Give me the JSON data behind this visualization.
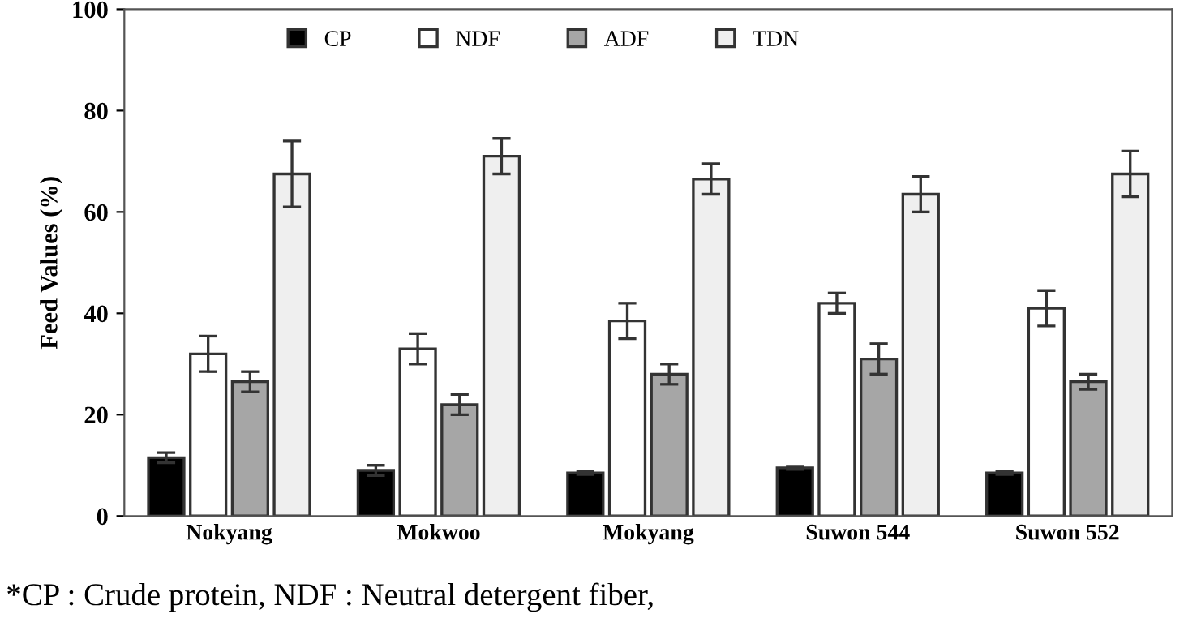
{
  "chart_data": {
    "type": "bar",
    "ylabel": "Feed Values (%)",
    "categories": [
      "Nokyang",
      "Mokwoo",
      "Mokyang",
      "Suwon 544",
      "Suwon 552"
    ],
    "series": [
      {
        "name": "CP",
        "color": "#000000",
        "values": [
          11.5,
          9,
          8.5,
          9.5,
          8.5
        ],
        "errors": [
          1,
          1,
          0.3,
          0.3,
          0.3
        ]
      },
      {
        "name": "NDF",
        "color": "#ffffff",
        "values": [
          32,
          33,
          38.5,
          42,
          41
        ],
        "errors": [
          3.5,
          3,
          3.5,
          2,
          3.5
        ]
      },
      {
        "name": "ADF",
        "color": "#a6a6a6",
        "values": [
          26.5,
          22,
          28,
          31,
          26.5
        ],
        "errors": [
          2,
          2,
          2,
          3,
          1.5
        ]
      },
      {
        "name": "TDN",
        "color": "#efefef",
        "values": [
          67.5,
          71,
          66.5,
          63.5,
          67.5
        ],
        "errors": [
          6.5,
          3.5,
          3,
          3.5,
          4.5
        ]
      }
    ],
    "ylim": [
      0,
      100
    ],
    "yticks": [
      0,
      20,
      40,
      60,
      80,
      100
    ],
    "grid": false,
    "legend": "top",
    "annotations": [
      "*CP : Crude protein, NDF : Neutral detergent fiber,"
    ]
  }
}
